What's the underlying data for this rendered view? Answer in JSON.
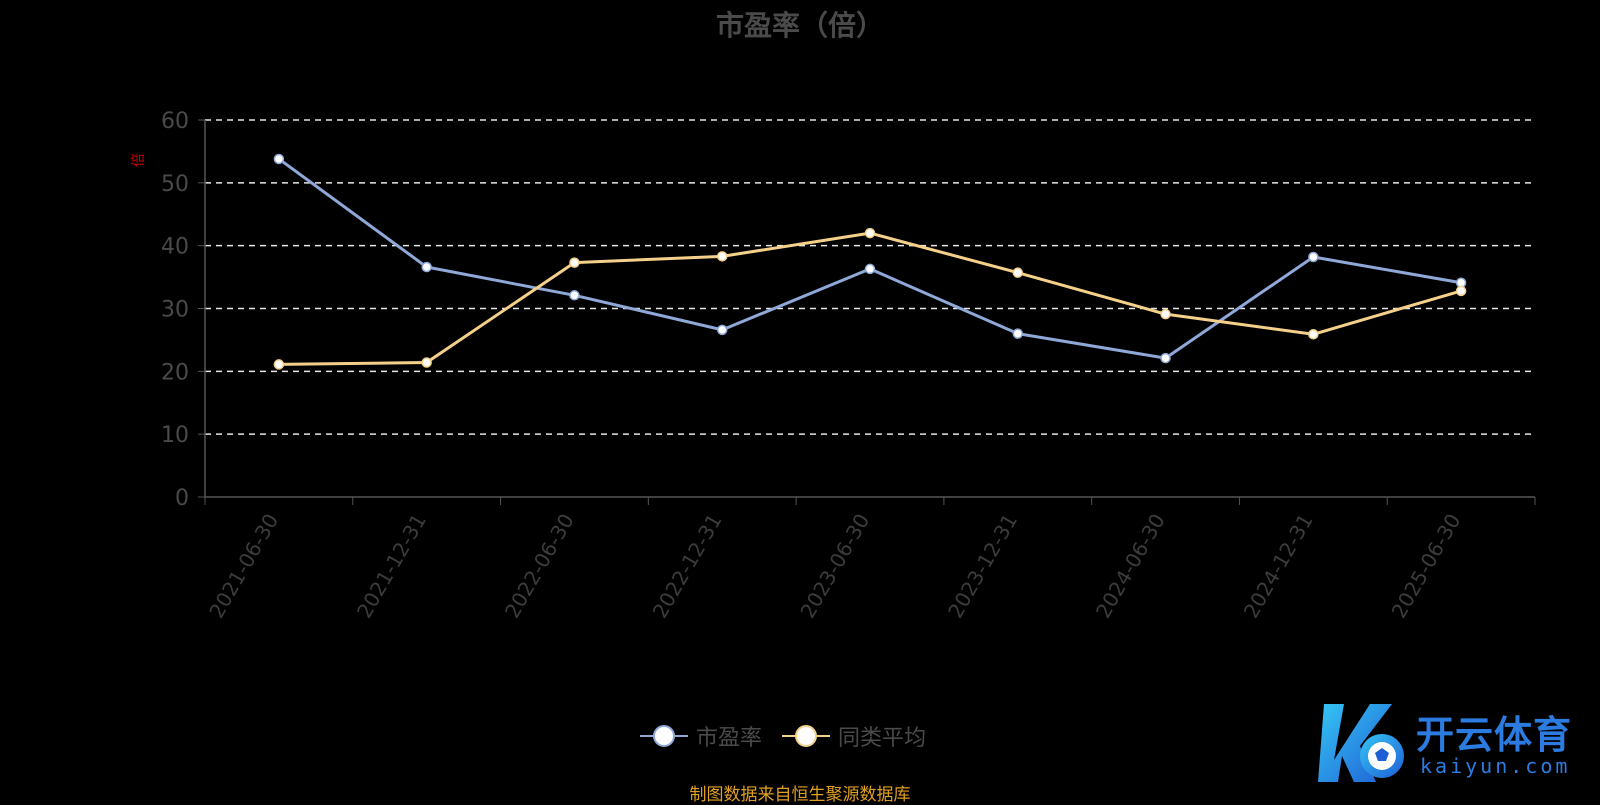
{
  "chart_data": {
    "type": "line",
    "title": "市盈率（倍）",
    "ylabel": "倍",
    "xlabel": "",
    "ylim": [
      0,
      60
    ],
    "yticks": [
      0,
      10,
      20,
      30,
      40,
      50,
      60
    ],
    "grid": true,
    "legend_position": "bottom",
    "categories": [
      "2021-06-30",
      "2021-12-31",
      "2022-06-30",
      "2022-12-31",
      "2023-06-30",
      "2023-12-31",
      "2024-06-30",
      "2024-12-31",
      "2025-06-30"
    ],
    "series": [
      {
        "name": "市盈率",
        "color": "#8fa8d8",
        "values": [
          53.8,
          36.6,
          32.1,
          26.6,
          36.3,
          26.0,
          22.1,
          38.2,
          34.1
        ]
      },
      {
        "name": "同类平均",
        "color": "#f5d08a",
        "values": [
          21.1,
          21.4,
          37.3,
          38.3,
          42.0,
          35.7,
          29.1,
          25.9,
          32.8
        ]
      }
    ]
  },
  "legend": {
    "items": [
      {
        "label": "市盈率",
        "color": "#8fa8d8"
      },
      {
        "label": "同类平均",
        "color": "#f5d08a"
      }
    ]
  },
  "source_note": "制图数据来自恒生聚源数据库",
  "watermark": {
    "brand": "开云体育",
    "domain": "kaiyun.com"
  }
}
